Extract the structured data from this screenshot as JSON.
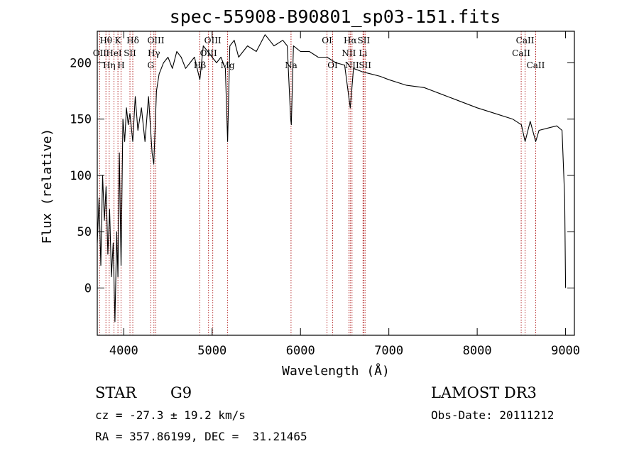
{
  "chart_data": {
    "type": "line",
    "title": "spec-55908-B90801_sp03-151.fits",
    "xlabel": "Wavelength (Å)",
    "ylabel": "Flux (relative)",
    "xlim": [
      3700,
      9100
    ],
    "ylim": [
      -42,
      228
    ],
    "xticks": [
      4000,
      5000,
      6000,
      7000,
      8000,
      9000
    ],
    "yticks": [
      0,
      50,
      100,
      150,
      200
    ],
    "series": [
      {
        "name": "flux",
        "x": [
          3700,
          3720,
          3740,
          3760,
          3780,
          3800,
          3820,
          3840,
          3860,
          3880,
          3900,
          3920,
          3934,
          3950,
          3969,
          3990,
          4010,
          4030,
          4050,
          4070,
          4102,
          4130,
          4160,
          4200,
          4240,
          4280,
          4320,
          4340,
          4370,
          4400,
          4450,
          4500,
          4550,
          4600,
          4650,
          4700,
          4750,
          4800,
          4861,
          4900,
          4950,
          5000,
          5050,
          5100,
          5150,
          5175,
          5200,
          5250,
          5300,
          5400,
          5500,
          5600,
          5700,
          5800,
          5850,
          5889,
          5896,
          5920,
          6000,
          6100,
          6200,
          6300,
          6400,
          6500,
          6563,
          6600,
          6700,
          6800,
          6900,
          7000,
          7200,
          7400,
          7600,
          7800,
          8000,
          8200,
          8400,
          8500,
          8542,
          8600,
          8662,
          8700,
          8800,
          8900,
          8960,
          8990,
          9000
        ],
        "values": [
          40,
          80,
          20,
          100,
          60,
          90,
          30,
          70,
          10,
          40,
          -30,
          50,
          10,
          120,
          20,
          150,
          130,
          160,
          145,
          155,
          130,
          170,
          140,
          160,
          130,
          170,
          120,
          110,
          175,
          190,
          200,
          205,
          195,
          210,
          205,
          195,
          200,
          205,
          185,
          215,
          210,
          205,
          200,
          205,
          195,
          130,
          215,
          220,
          205,
          215,
          210,
          225,
          215,
          220,
          215,
          150,
          145,
          215,
          210,
          210,
          205,
          205,
          200,
          198,
          160,
          195,
          192,
          190,
          188,
          185,
          180,
          178,
          172,
          166,
          160,
          155,
          150,
          145,
          130,
          148,
          130,
          140,
          142,
          144,
          140,
          80,
          0
        ]
      }
    ],
    "spectral_lines": [
      {
        "label": "Hθ",
        "wavelength": 3798,
        "row": 0
      },
      {
        "label": "K",
        "wavelength": 3934,
        "row": 0
      },
      {
        "label": "Hδ",
        "wavelength": 4102,
        "row": 0
      },
      {
        "label": "OII",
        "wavelength": 3727,
        "row": 1
      },
      {
        "label": "HeI",
        "wavelength": 3889,
        "row": 1
      },
      {
        "label": "SII",
        "wavelength": 4070,
        "row": 1
      },
      {
        "label": "Hη",
        "wavelength": 3835,
        "row": 2
      },
      {
        "label": "H",
        "wavelength": 3969,
        "row": 2
      },
      {
        "label": "OIII",
        "wavelength": 4363,
        "row": 0
      },
      {
        "label": "Hγ",
        "wavelength": 4341,
        "row": 1
      },
      {
        "label": "G",
        "wavelength": 4305,
        "row": 2
      },
      {
        "label": "OIII",
        "wavelength": 5007,
        "row": 0
      },
      {
        "label": "OIII",
        "wavelength": 4959,
        "row": 1
      },
      {
        "label": "Hβ",
        "wavelength": 4861,
        "row": 2
      },
      {
        "label": "Mg",
        "wavelength": 5175,
        "row": 2
      },
      {
        "label": "Na",
        "wavelength": 5893,
        "row": 2
      },
      {
        "label": "OI",
        "wavelength": 6300,
        "row": 0
      },
      {
        "label": "OI",
        "wavelength": 6364,
        "row": 2
      },
      {
        "label": "Hα",
        "wavelength": 6563,
        "row": 0
      },
      {
        "label": "SII",
        "wavelength": 6716,
        "row": 0
      },
      {
        "label": "NII",
        "wavelength": 6548,
        "row": 1
      },
      {
        "label": "Li",
        "wavelength": 6708,
        "row": 1
      },
      {
        "label": "NII",
        "wavelength": 6583,
        "row": 2
      },
      {
        "label": "SII",
        "wavelength": 6731,
        "row": 2
      },
      {
        "label": "CaII",
        "wavelength": 8542,
        "row": 0
      },
      {
        "label": "CaII",
        "wavelength": 8498,
        "row": 1
      },
      {
        "label": "CaII",
        "wavelength": 8662,
        "row": 2
      }
    ]
  },
  "info": {
    "object_class": "STAR",
    "subclass": "G9",
    "survey": "LAMOST DR3",
    "cz": "cz = -27.3 ± 19.2 km/s",
    "obs_date": "Obs-Date: 20111212",
    "coords": "RA = 357.86199, DEC =  31.21465"
  },
  "colors": {
    "line": "#000000",
    "marker": "#b22222",
    "background": "#ffffff"
  }
}
